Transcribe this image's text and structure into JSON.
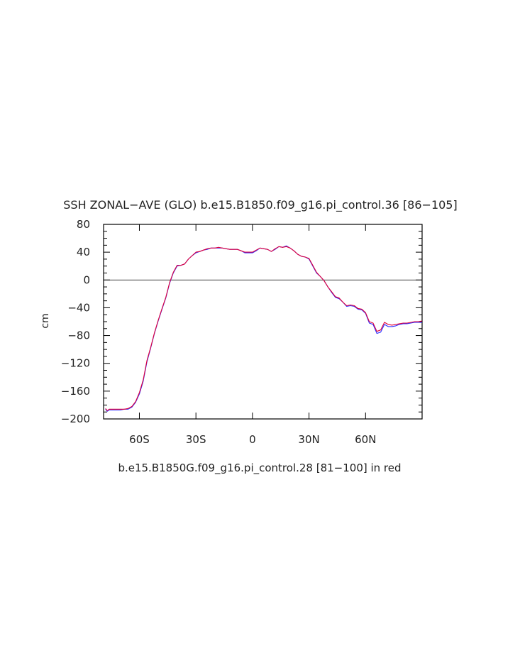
{
  "chart_data": {
    "type": "line",
    "title": "SSH ZONAL−AVE (GLO) b.e15.B1850.f09_g16.pi_control.36 [86−105]",
    "subtitle": "b.e15.B1850G.f09_g16.pi_control.28 [81−100] in red",
    "ylabel": "cm",
    "xlabel": "",
    "xlim": [
      -79,
      90
    ],
    "ylim": [
      -200,
      80
    ],
    "x_ticks": [
      {
        "value": -60,
        "label": "60S"
      },
      {
        "value": -30,
        "label": "30S"
      },
      {
        "value": 0,
        "label": "0"
      },
      {
        "value": 30,
        "label": "30N"
      },
      {
        "value": 60,
        "label": "60N"
      }
    ],
    "y_ticks": [
      {
        "value": 80,
        "label": "80"
      },
      {
        "value": 40,
        "label": "40"
      },
      {
        "value": 0,
        "label": "0"
      },
      {
        "value": -40,
        "label": "−40"
      },
      {
        "value": -80,
        "label": "−80"
      },
      {
        "value": -120,
        "label": "−120"
      },
      {
        "value": -160,
        "label": "−160"
      },
      {
        "value": -200,
        "label": "−200"
      }
    ],
    "reference_line": 0,
    "grid": false,
    "series": [
      {
        "color": "#2b2bff",
        "x": [
          -78,
          -77,
          -76,
          -74,
          -72,
          -70,
          -68,
          -66,
          -64,
          -62,
          -60,
          -58,
          -56,
          -54,
          -52,
          -50,
          -48,
          -46,
          -44,
          -42,
          -40,
          -38,
          -36,
          -34,
          -32,
          -30,
          -28,
          -26,
          -24,
          -22,
          -20,
          -18,
          -16,
          -14,
          -12,
          -10,
          -8,
          -6,
          -4,
          -2,
          0,
          2,
          4,
          6,
          8,
          10,
          12,
          14,
          16,
          18,
          20,
          22,
          24,
          26,
          28,
          30,
          32,
          34,
          36,
          38,
          40,
          42,
          44,
          46,
          48,
          50,
          52,
          54,
          56,
          58,
          60,
          62,
          64,
          66,
          68,
          70,
          72,
          74,
          76,
          78,
          80,
          82,
          84,
          86,
          88,
          90
        ],
        "y": [
          -186,
          -189,
          -187,
          -187,
          -187,
          -187,
          -186,
          -186,
          -183,
          -176,
          -164,
          -146,
          -118,
          -98,
          -77,
          -59,
          -42,
          -26,
          -5,
          10,
          20,
          21,
          23,
          30,
          35,
          39,
          41,
          43,
          44,
          46,
          46,
          46,
          46,
          45,
          44,
          44,
          44,
          42,
          39,
          39,
          39,
          42,
          46,
          45,
          44,
          41,
          44,
          48,
          47,
          49,
          46,
          42,
          37,
          34,
          33,
          30,
          20,
          10,
          5,
          -1,
          -10,
          -18,
          -25,
          -27,
          -32,
          -38,
          -37,
          -38,
          -42,
          -43,
          -48,
          -62,
          -64,
          -77,
          -75,
          -64,
          -67,
          -67,
          -66,
          -64,
          -63,
          -63,
          -62,
          -61,
          -61,
          -61
        ]
      },
      {
        "color": "#e0003c",
        "x": [
          -78,
          -77,
          -76,
          -74,
          -72,
          -70,
          -68,
          -66,
          -64,
          -62,
          -60,
          -58,
          -56,
          -54,
          -52,
          -50,
          -48,
          -46,
          -44,
          -42,
          -40,
          -38,
          -36,
          -34,
          -32,
          -30,
          -28,
          -26,
          -24,
          -22,
          -20,
          -18,
          -16,
          -14,
          -12,
          -10,
          -8,
          -6,
          -4,
          -2,
          0,
          2,
          4,
          6,
          8,
          10,
          12,
          14,
          16,
          18,
          20,
          22,
          24,
          26,
          28,
          30,
          32,
          34,
          36,
          38,
          40,
          42,
          44,
          46,
          48,
          50,
          52,
          54,
          56,
          58,
          60,
          62,
          64,
          66,
          68,
          70,
          72,
          74,
          76,
          78,
          80,
          82,
          84,
          86,
          88,
          90
        ],
        "y": [
          -185,
          -188,
          -186,
          -186,
          -186,
          -186,
          -186,
          -185,
          -182,
          -175,
          -162,
          -144,
          -116,
          -97,
          -76,
          -58,
          -41,
          -25,
          -4,
          11,
          21,
          21,
          23,
          30,
          35,
          40,
          41,
          43,
          45,
          46,
          46,
          47,
          46,
          45,
          44,
          44,
          44,
          42,
          40,
          40,
          40,
          43,
          46,
          45,
          44,
          41,
          45,
          48,
          47,
          48,
          46,
          42,
          37,
          34,
          33,
          31,
          21,
          11,
          5,
          -1,
          -10,
          -17,
          -24,
          -26,
          -32,
          -37,
          -36,
          -37,
          -41,
          -42,
          -47,
          -60,
          -62,
          -74,
          -72,
          -61,
          -64,
          -65,
          -64,
          -63,
          -62,
          -62,
          -61,
          -60,
          -60,
          -59
        ]
      }
    ]
  }
}
